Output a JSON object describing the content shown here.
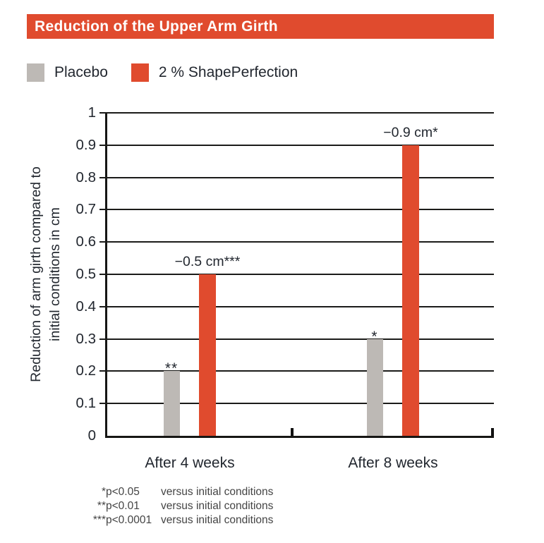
{
  "title": "Reduction of the Upper Arm Girth",
  "colors": {
    "accent_red": "#E04B2E",
    "placebo_gray": "#BDB9B5",
    "text_dark": "#22272F",
    "grid": "#1B1B19",
    "title_text": "#FFFFFF",
    "footnote_gray": "#444444"
  },
  "legend": [
    {
      "label": "Placebo",
      "color": "#BDB9B5"
    },
    {
      "label": "2 % ShapePerfection",
      "color": "#E04B2E"
    }
  ],
  "chart_data": {
    "type": "bar",
    "title": "Reduction of the Upper Arm Girth",
    "categories": [
      "After 4 weeks",
      "After 8 weeks"
    ],
    "series": [
      {
        "name": "Placebo",
        "color_key": "placebo_gray",
        "values": [
          0.2,
          0.3
        ],
        "bar_labels": [
          "**",
          "*"
        ]
      },
      {
        "name": "2 % ShapePerfection",
        "color_key": "accent_red",
        "values": [
          0.5,
          0.9
        ],
        "bar_labels": [
          "−0.5 cm***",
          "−0.9 cm*"
        ]
      }
    ],
    "ylabel_line1": "Reduction of arm girth compared to",
    "ylabel_line2": "initial conditions in cm",
    "xlabel": "",
    "ylim": [
      0,
      1
    ],
    "yticks": [
      0,
      0.1,
      0.2,
      0.3,
      0.4,
      0.5,
      0.6,
      0.7,
      0.8,
      0.9,
      1
    ],
    "ytick_labels": [
      "0",
      "0.1",
      "0.2",
      "0.3",
      "0.4",
      "0.5",
      "0.6",
      "0.7",
      "0.8",
      "0.9",
      "1"
    ],
    "grid": true,
    "legend_position": "top-left"
  },
  "footnotes": [
    {
      "stars": "*",
      "p": "p<0.05",
      "text": "versus initial conditions"
    },
    {
      "stars": "**",
      "p": "p<0.01",
      "text": "versus initial conditions"
    },
    {
      "stars": "***",
      "p": "p<0.0001",
      "text": "versus initial conditions"
    }
  ]
}
